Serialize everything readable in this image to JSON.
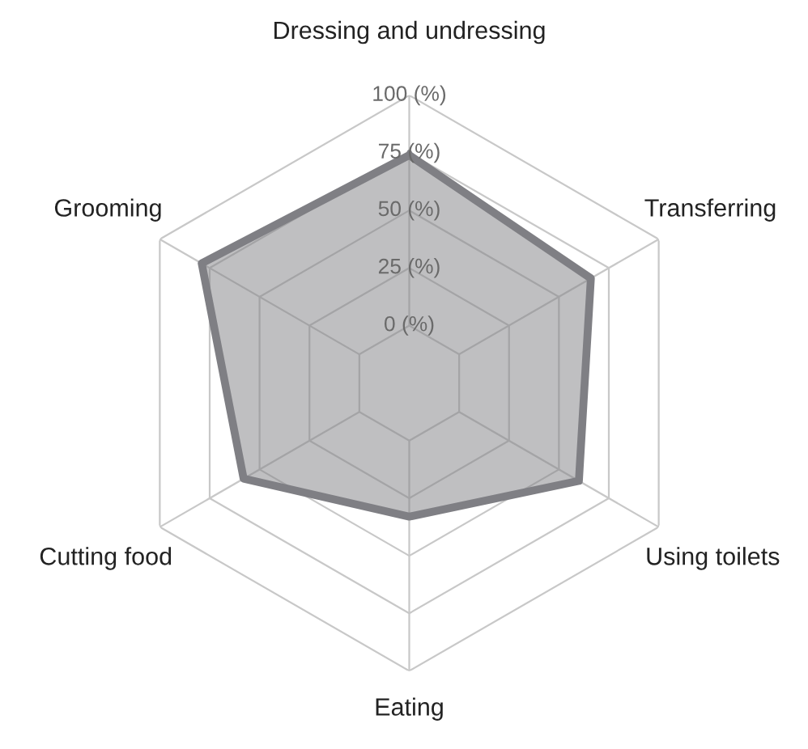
{
  "chart_data": {
    "type": "radar",
    "categories": [
      "Dressing and undressing",
      "Transferring",
      "Using toilets",
      "Eating",
      "Cutting food",
      "Grooming"
    ],
    "series": [
      {
        "color": "#7f7f84",
        "values": [
          74,
          66,
          60,
          33,
          58,
          79
        ]
      }
    ],
    "ylim": [
      -25,
      100
    ],
    "yticks": [
      {
        "value": 0,
        "label": "0 (%)"
      },
      {
        "value": 25,
        "label": "25 (%)"
      },
      {
        "value": 50,
        "label": "50 (%)"
      },
      {
        "value": 75,
        "label": "75 (%)"
      },
      {
        "value": 100,
        "label": "100 (%)"
      }
    ],
    "grid": true,
    "legend": false
  }
}
